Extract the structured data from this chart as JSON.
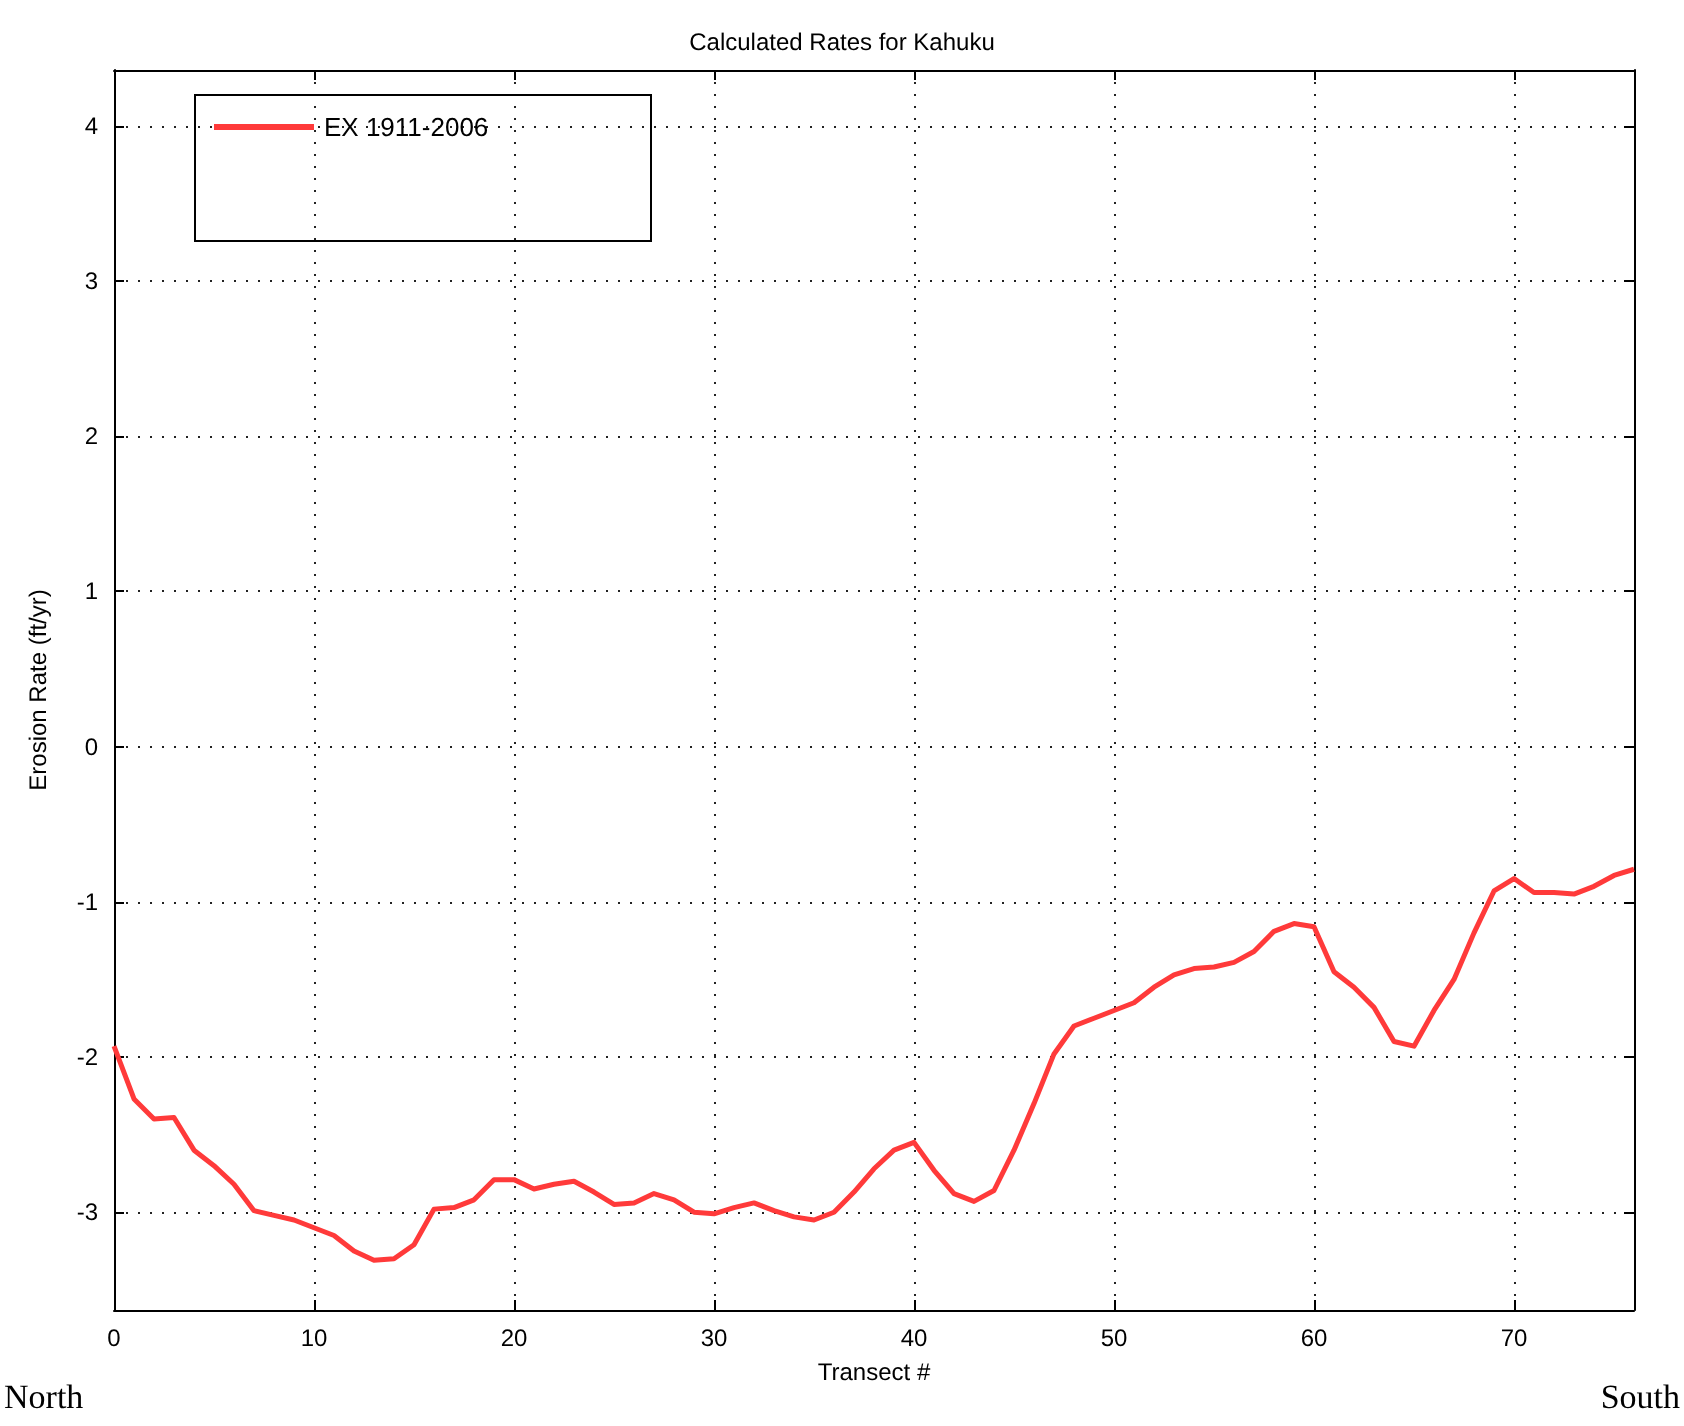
{
  "chart_data": {
    "type": "line",
    "title": "Calculated Rates for Kahuku",
    "xlabel": "Transect #",
    "ylabel": "Erosion Rate (ft/yr)",
    "annotations": [
      "North",
      "South"
    ],
    "x": [
      0,
      1,
      2,
      3,
      4,
      5,
      6,
      7,
      8,
      9,
      10,
      11,
      12,
      13,
      14,
      15,
      16,
      17,
      18,
      19,
      20,
      21,
      22,
      23,
      24,
      25,
      26,
      27,
      28,
      29,
      30,
      31,
      32,
      33,
      34,
      35,
      36,
      37,
      38,
      39,
      40,
      41,
      42,
      43,
      44,
      45,
      46,
      47,
      48,
      49,
      50,
      51,
      52,
      53,
      54,
      55,
      56,
      57,
      58,
      59,
      60,
      61,
      62,
      63,
      64,
      65,
      66,
      67,
      68,
      69,
      70,
      71,
      72,
      73,
      74,
      75,
      76
    ],
    "series": [
      {
        "name": "EX 1911-2006",
        "color": "#ff3a3a",
        "values": [
          -1.93,
          -2.27,
          -2.4,
          -2.39,
          -2.6,
          -2.7,
          -2.82,
          -2.99,
          -3.02,
          -3.05,
          -3.1,
          -3.15,
          -3.25,
          -3.31,
          -3.3,
          -3.21,
          -2.98,
          -2.97,
          -2.92,
          -2.79,
          -2.79,
          -2.85,
          -2.82,
          -2.8,
          -2.87,
          -2.95,
          -2.94,
          -2.88,
          -2.92,
          -3.0,
          -3.01,
          -2.97,
          -2.94,
          -2.99,
          -3.03,
          -3.05,
          -3.0,
          -2.87,
          -2.72,
          -2.6,
          -2.55,
          -2.73,
          -2.88,
          -2.93,
          -2.86,
          -2.6,
          -2.3,
          -1.98,
          -1.8,
          -1.75,
          -1.7,
          -1.65,
          -1.55,
          -1.47,
          -1.43,
          -1.42,
          -1.39,
          -1.32,
          -1.19,
          -1.14,
          -1.16,
          -1.45,
          -1.55,
          -1.68,
          -1.9,
          -1.93,
          -1.7,
          -1.5,
          -1.2,
          -0.93,
          -0.85,
          -0.94,
          -0.94,
          -0.95,
          -0.9,
          -0.83,
          -0.79
        ]
      }
    ],
    "xlim": [
      0,
      76
    ],
    "xticks": [
      0,
      10,
      20,
      30,
      40,
      50,
      60,
      70
    ],
    "ylim": [
      -3.63,
      4.36
    ],
    "yticks": [
      -3,
      -2,
      -1,
      0,
      1,
      2,
      3,
      4
    ],
    "grid": true,
    "legend": "top left",
    "marker": "none",
    "line_style": "solid"
  }
}
